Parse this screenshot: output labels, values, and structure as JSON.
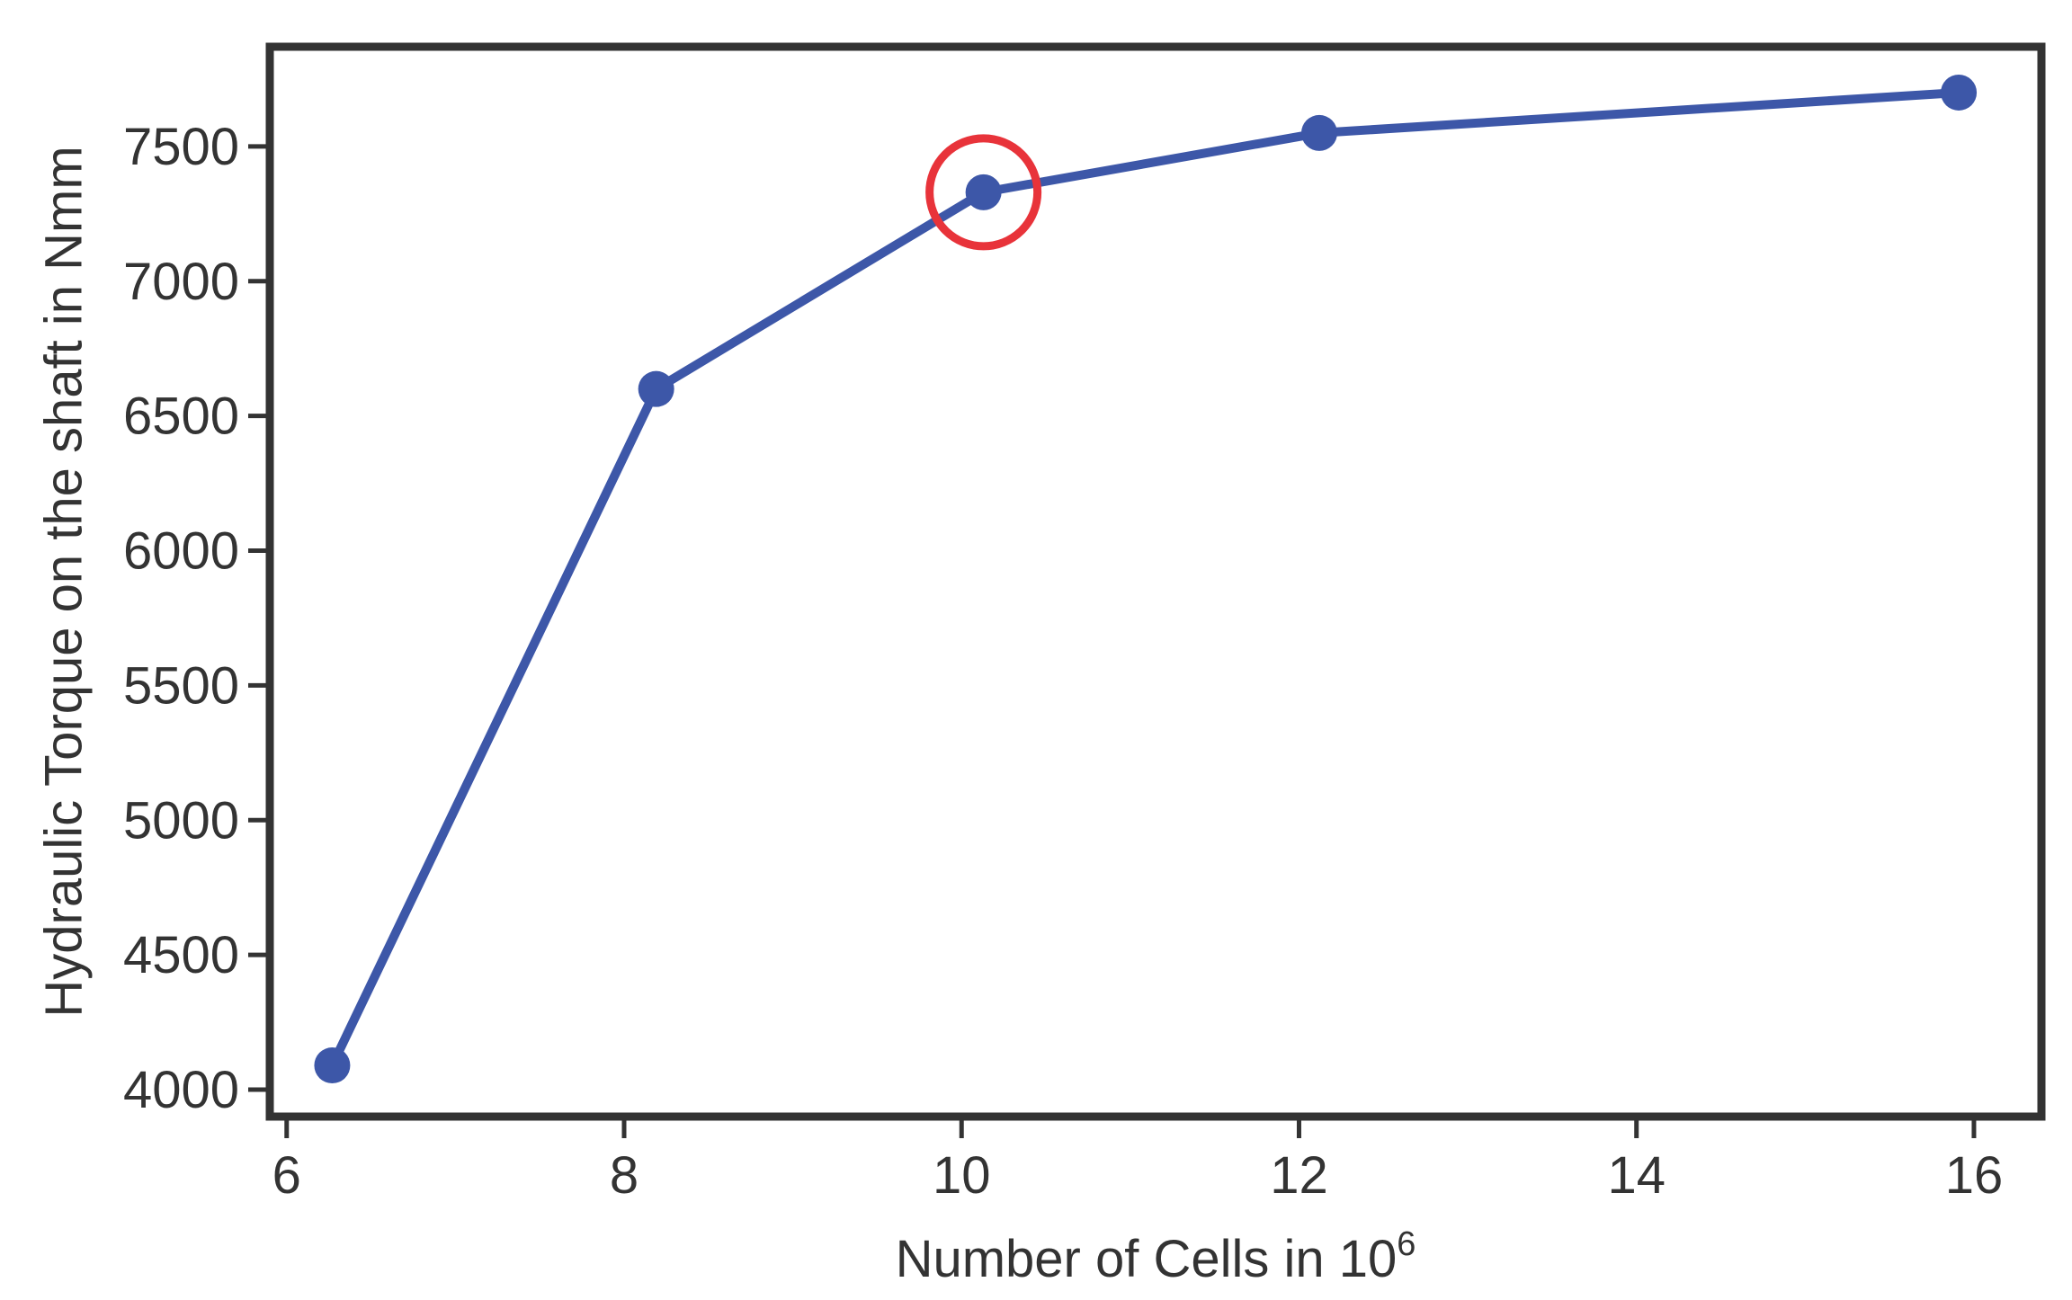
{
  "chart_data": {
    "type": "line",
    "title": "",
    "xlabel": "Number of Cells in 10",
    "xlabel_superscript": "6",
    "ylabel": "Hydraulic Torque on the shaft in Nmm",
    "xlim": [
      5.9,
      16.4
    ],
    "ylim": [
      3900,
      7870
    ],
    "x_ticks": [
      6,
      8,
      10,
      12,
      14,
      16
    ],
    "y_ticks": [
      4000,
      4500,
      5000,
      5500,
      6000,
      6500,
      7000,
      7500
    ],
    "grid": false,
    "legend": "none",
    "series": [
      {
        "x": [
          6.27,
          8.19,
          10.13,
          12.12,
          15.91
        ],
        "values": [
          4090,
          6600,
          7330,
          7550,
          7700
        ],
        "color": "#3d57a8"
      }
    ],
    "highlight": {
      "x": 10.13,
      "y": 7330,
      "shape": "circle",
      "color": "#e8333a"
    }
  }
}
